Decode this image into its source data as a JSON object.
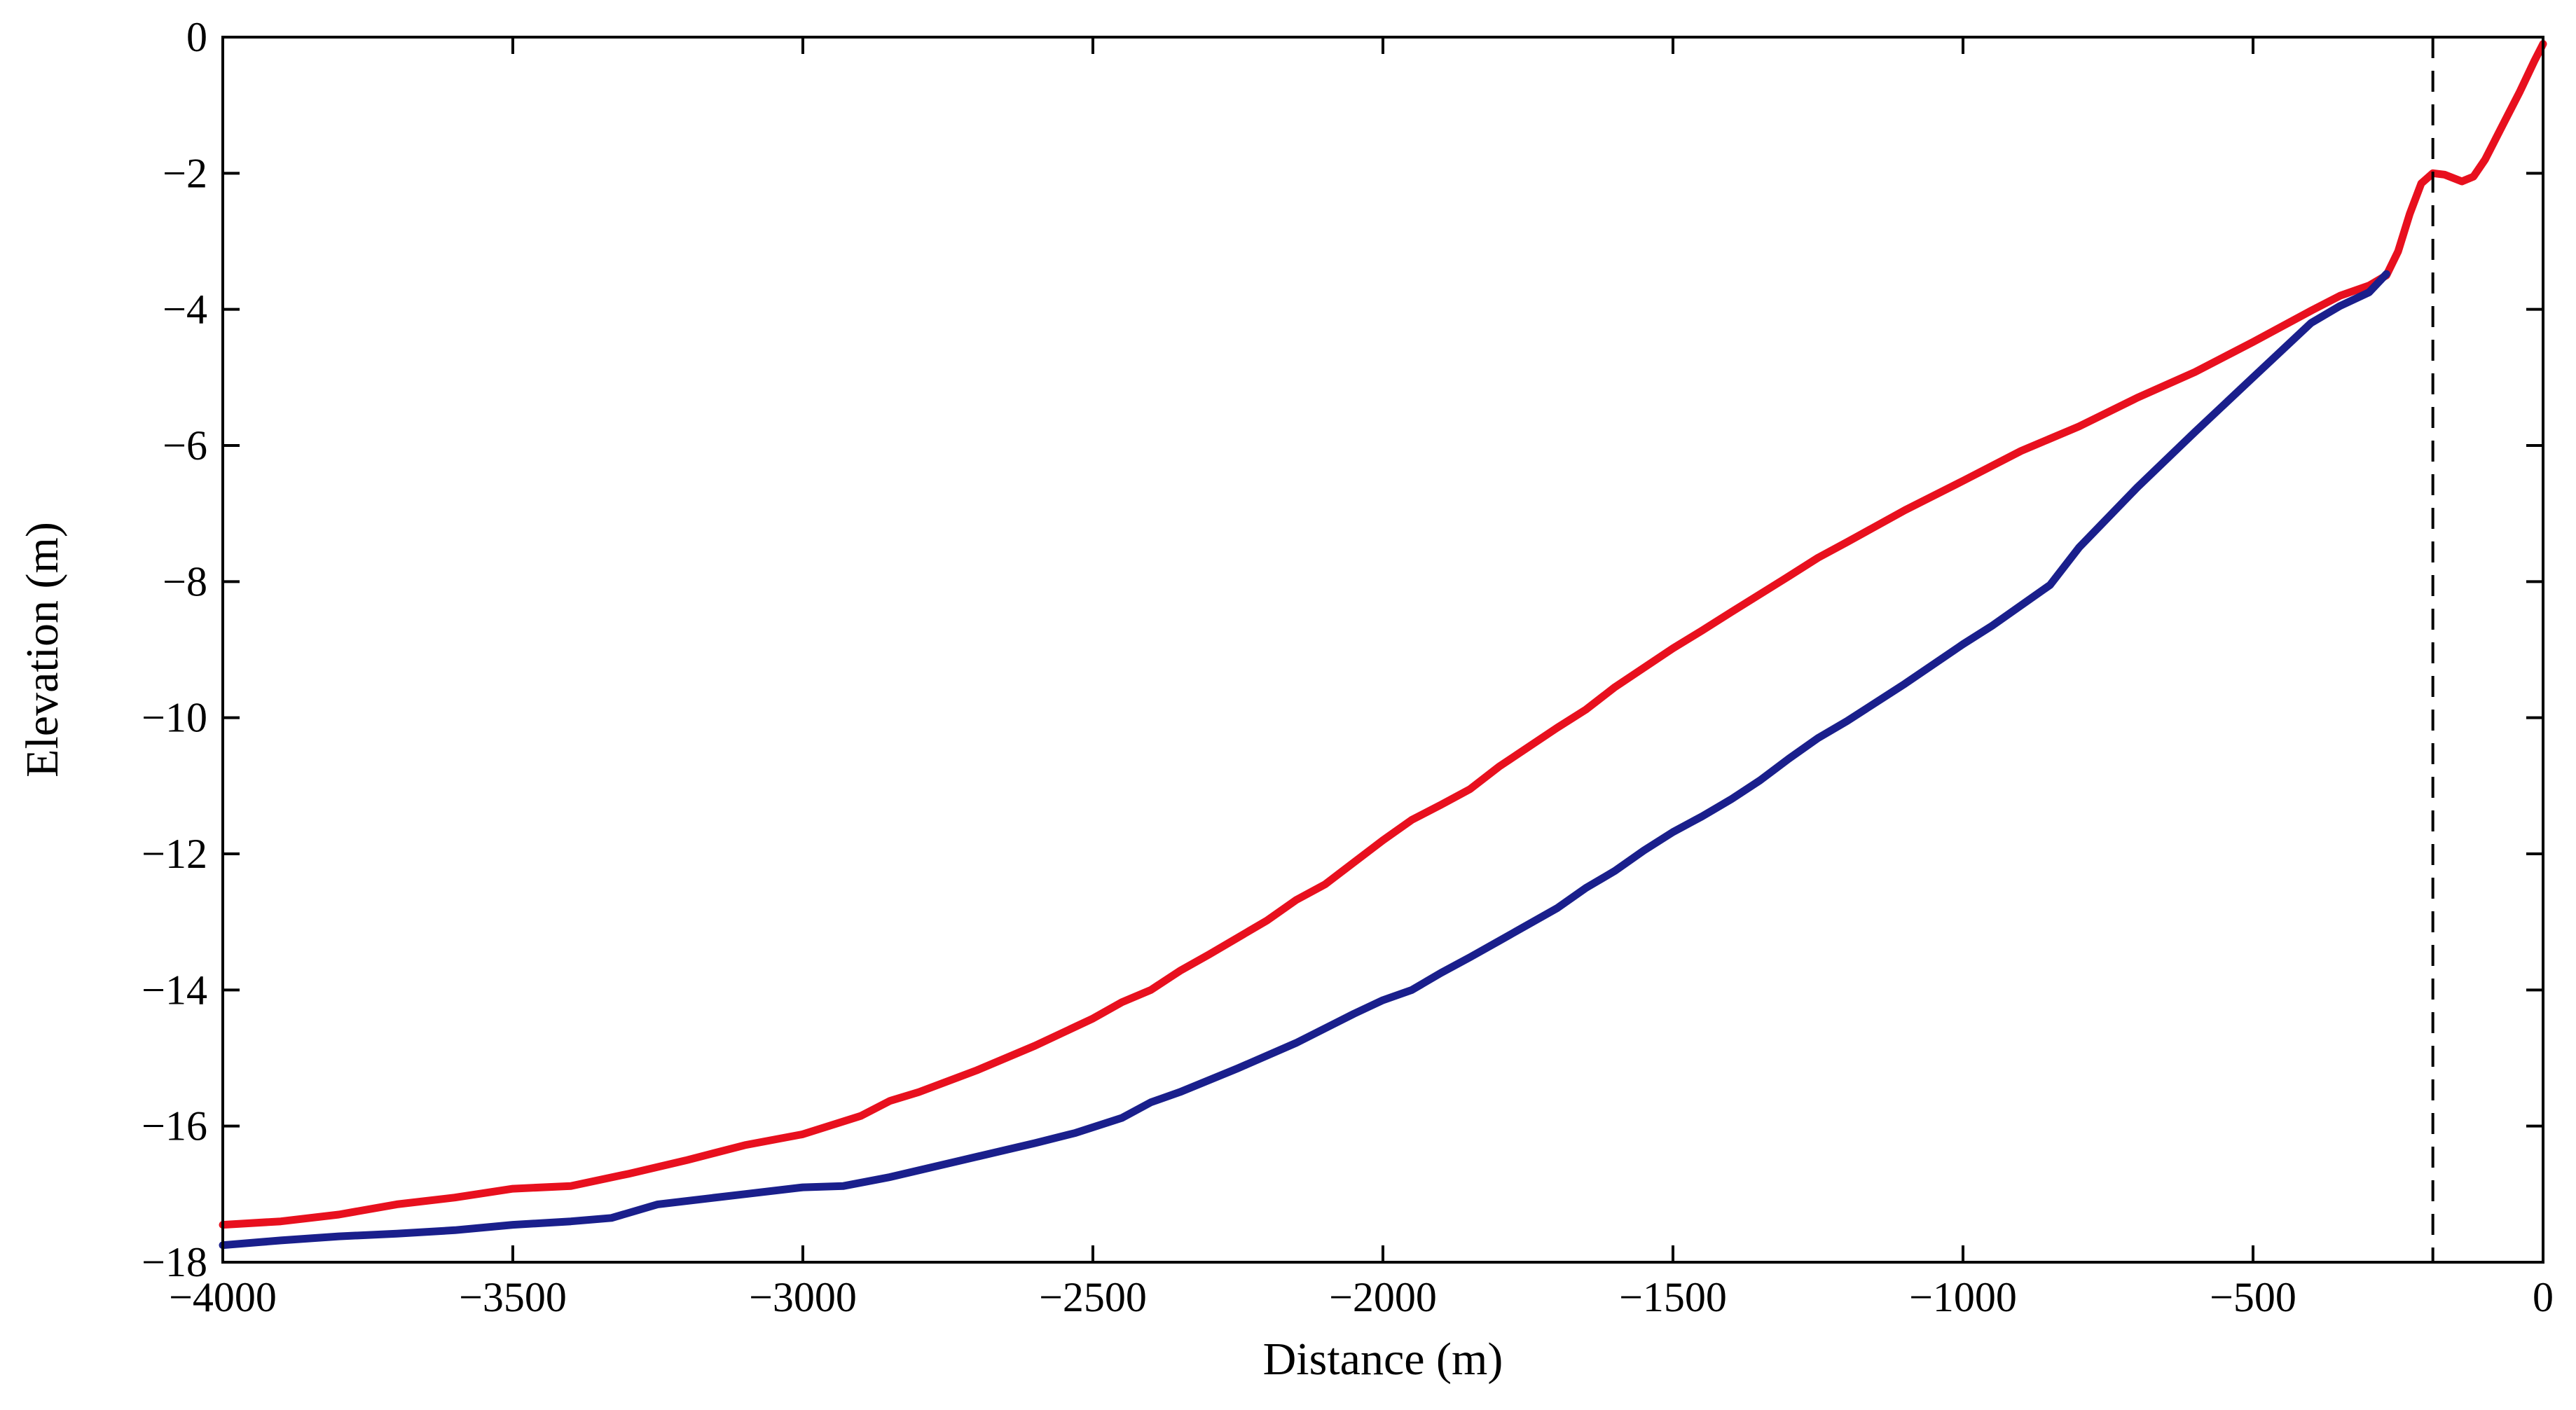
{
  "chart_data": {
    "type": "line",
    "title": "",
    "xlabel": "Distance (m)",
    "ylabel": "Elevation (m)",
    "xlim": [
      -4000,
      0
    ],
    "ylim": [
      -18,
      0
    ],
    "xticks": [
      -4000,
      -3500,
      -3000,
      -2500,
      -2000,
      -1500,
      -1000,
      -500,
      0
    ],
    "yticks": [
      0,
      -2,
      -4,
      -6,
      -8,
      -10,
      -12,
      -14,
      -16,
      -18
    ],
    "x_tick_labels": [
      "−4000",
      "−3500",
      "−3000",
      "−2500",
      "−2000",
      "−1500",
      "−1000",
      "−500",
      "0"
    ],
    "y_tick_labels": [
      "0",
      "−2",
      "−4",
      "−6",
      "−8",
      "−10",
      "−12",
      "−14",
      "−16",
      "−18"
    ],
    "reference_line": {
      "x": -190,
      "style": "dashed",
      "color": "#000000"
    },
    "series": [
      {
        "name": "red profile",
        "color": "#e8101e",
        "points": [
          [
            -4000,
            -17.45
          ],
          [
            -3900,
            -17.4
          ],
          [
            -3800,
            -17.3
          ],
          [
            -3700,
            -17.15
          ],
          [
            -3600,
            -17.05
          ],
          [
            -3500,
            -16.92
          ],
          [
            -3400,
            -16.88
          ],
          [
            -3300,
            -16.7
          ],
          [
            -3200,
            -16.5
          ],
          [
            -3100,
            -16.28
          ],
          [
            -3000,
            -16.12
          ],
          [
            -2900,
            -15.85
          ],
          [
            -2850,
            -15.63
          ],
          [
            -2800,
            -15.5
          ],
          [
            -2700,
            -15.18
          ],
          [
            -2600,
            -14.82
          ],
          [
            -2500,
            -14.42
          ],
          [
            -2450,
            -14.18
          ],
          [
            -2400,
            -14.0
          ],
          [
            -2350,
            -13.72
          ],
          [
            -2300,
            -13.48
          ],
          [
            -2200,
            -12.98
          ],
          [
            -2150,
            -12.68
          ],
          [
            -2100,
            -12.45
          ],
          [
            -2000,
            -11.8
          ],
          [
            -1950,
            -11.5
          ],
          [
            -1900,
            -11.28
          ],
          [
            -1850,
            -11.05
          ],
          [
            -1800,
            -10.72
          ],
          [
            -1700,
            -10.15
          ],
          [
            -1650,
            -9.88
          ],
          [
            -1600,
            -9.55
          ],
          [
            -1500,
            -8.98
          ],
          [
            -1450,
            -8.72
          ],
          [
            -1400,
            -8.45
          ],
          [
            -1300,
            -7.92
          ],
          [
            -1250,
            -7.65
          ],
          [
            -1200,
            -7.42
          ],
          [
            -1100,
            -6.95
          ],
          [
            -1000,
            -6.52
          ],
          [
            -900,
            -6.08
          ],
          [
            -800,
            -5.72
          ],
          [
            -700,
            -5.3
          ],
          [
            -600,
            -4.92
          ],
          [
            -500,
            -4.48
          ],
          [
            -400,
            -4.02
          ],
          [
            -350,
            -3.8
          ],
          [
            -300,
            -3.65
          ],
          [
            -270,
            -3.5
          ],
          [
            -250,
            -3.15
          ],
          [
            -230,
            -2.6
          ],
          [
            -210,
            -2.15
          ],
          [
            -190,
            -2.0
          ],
          [
            -170,
            -2.02
          ],
          [
            -140,
            -2.12
          ],
          [
            -120,
            -2.05
          ],
          [
            -100,
            -1.8
          ],
          [
            -70,
            -1.3
          ],
          [
            -40,
            -0.8
          ],
          [
            -15,
            -0.35
          ],
          [
            0,
            -0.1
          ]
        ]
      },
      {
        "name": "blue profile",
        "color": "#1a1f8c",
        "points": [
          [
            -4000,
            -17.75
          ],
          [
            -3900,
            -17.68
          ],
          [
            -3800,
            -17.62
          ],
          [
            -3700,
            -17.58
          ],
          [
            -3600,
            -17.53
          ],
          [
            -3500,
            -17.45
          ],
          [
            -3400,
            -17.4
          ],
          [
            -3330,
            -17.35
          ],
          [
            -3250,
            -17.15
          ],
          [
            -3100,
            -17.0
          ],
          [
            -3000,
            -16.9
          ],
          [
            -2930,
            -16.88
          ],
          [
            -2850,
            -16.75
          ],
          [
            -2700,
            -16.45
          ],
          [
            -2600,
            -16.25
          ],
          [
            -2530,
            -16.1
          ],
          [
            -2450,
            -15.88
          ],
          [
            -2400,
            -15.65
          ],
          [
            -2350,
            -15.5
          ],
          [
            -2250,
            -15.15
          ],
          [
            -2150,
            -14.78
          ],
          [
            -2050,
            -14.35
          ],
          [
            -2000,
            -14.15
          ],
          [
            -1950,
            -14.0
          ],
          [
            -1900,
            -13.75
          ],
          [
            -1850,
            -13.52
          ],
          [
            -1800,
            -13.28
          ],
          [
            -1700,
            -12.8
          ],
          [
            -1650,
            -12.5
          ],
          [
            -1600,
            -12.25
          ],
          [
            -1550,
            -11.95
          ],
          [
            -1500,
            -11.68
          ],
          [
            -1450,
            -11.45
          ],
          [
            -1400,
            -11.2
          ],
          [
            -1350,
            -10.92
          ],
          [
            -1300,
            -10.6
          ],
          [
            -1250,
            -10.3
          ],
          [
            -1200,
            -10.05
          ],
          [
            -1100,
            -9.5
          ],
          [
            -1000,
            -8.92
          ],
          [
            -950,
            -8.65
          ],
          [
            -850,
            -8.05
          ],
          [
            -800,
            -7.5
          ],
          [
            -700,
            -6.62
          ],
          [
            -600,
            -5.8
          ],
          [
            -500,
            -5.0
          ],
          [
            -400,
            -4.2
          ],
          [
            -350,
            -3.95
          ],
          [
            -300,
            -3.75
          ],
          [
            -270,
            -3.48
          ]
        ]
      }
    ]
  }
}
